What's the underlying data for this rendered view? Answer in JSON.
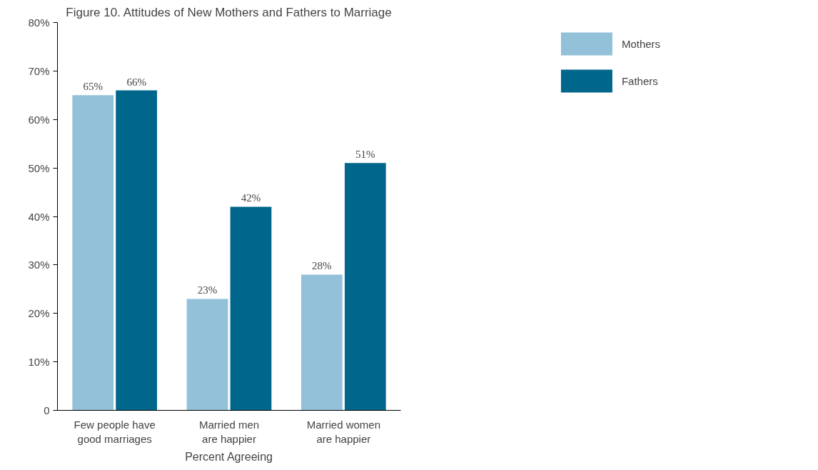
{
  "chart_data": {
    "type": "bar",
    "title": "Figure 10. Attitudes of New Mothers and Fathers to Marriage",
    "xlabel": "Percent Agreeing",
    "categories": [
      "Few people have\ngood marriages",
      "Married men\nare happier",
      "Married women\nare happier"
    ],
    "series": [
      {
        "name": "Mothers",
        "color": "#92c1d9",
        "values": [
          65,
          23,
          28
        ],
        "value_labels": [
          "65%",
          "23%",
          "28%"
        ]
      },
      {
        "name": "Fathers",
        "color": "#00668c",
        "values": [
          66,
          42,
          51
        ],
        "value_labels": [
          "66%",
          "42%",
          "51%"
        ]
      }
    ],
    "ylim": [
      0,
      80
    ],
    "yticks": [
      0,
      {
        "value": 10,
        "label": "10%"
      },
      {
        "value": 20,
        "label": "20%"
      },
      {
        "value": 30,
        "label": "30%"
      },
      {
        "value": 40,
        "label": "40%"
      },
      {
        "value": 50,
        "label": "50%"
      },
      {
        "value": 60,
        "label": "60%"
      },
      {
        "value": 70,
        "label": "70%"
      },
      {
        "value": 80,
        "label": "80%"
      }
    ],
    "grid": false,
    "legend": "top right"
  }
}
